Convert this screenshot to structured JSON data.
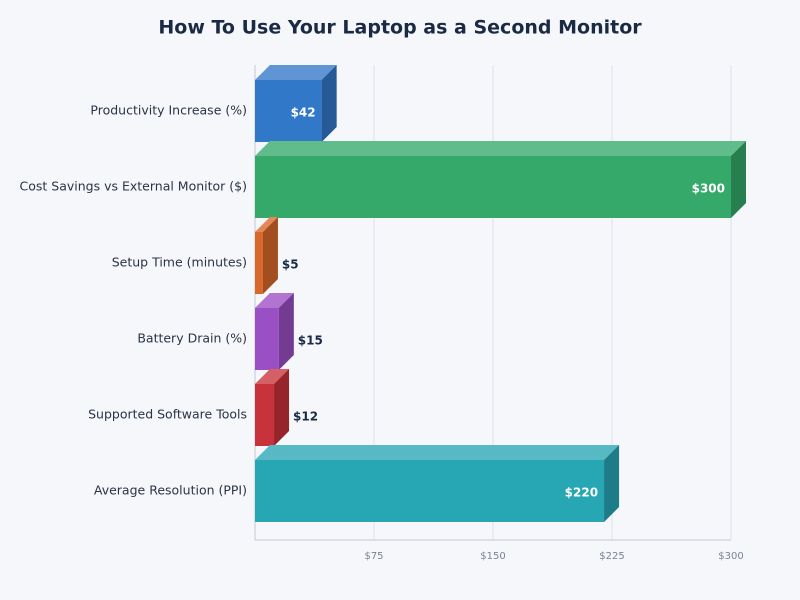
{
  "chart_data": {
    "type": "bar",
    "orientation": "horizontal",
    "title": "How To Use Your Laptop as a Second Monitor",
    "categories": [
      "Productivity Increase (%)",
      "Cost Savings vs External Monitor ($)",
      "Setup Time (minutes)",
      "Battery Drain (%)",
      "Supported Software Tools",
      "Average Resolution (PPI)"
    ],
    "values": [
      42,
      300,
      5,
      15,
      12,
      220
    ],
    "value_labels": [
      "$42",
      "$300",
      "$5",
      "$15",
      "$12",
      "$220"
    ],
    "colors": [
      "#3278c8",
      "#34a96a",
      "#d9692a",
      "#9b4fc4",
      "#c8323a",
      "#27a6b4"
    ],
    "xlim": [
      0,
      300
    ],
    "xticks": [
      {
        "value": 75,
        "label": "$75"
      },
      {
        "value": 150,
        "label": "$150"
      },
      {
        "value": 225,
        "label": "$225"
      },
      {
        "value": 300,
        "label": "$300"
      }
    ],
    "grid": true
  }
}
